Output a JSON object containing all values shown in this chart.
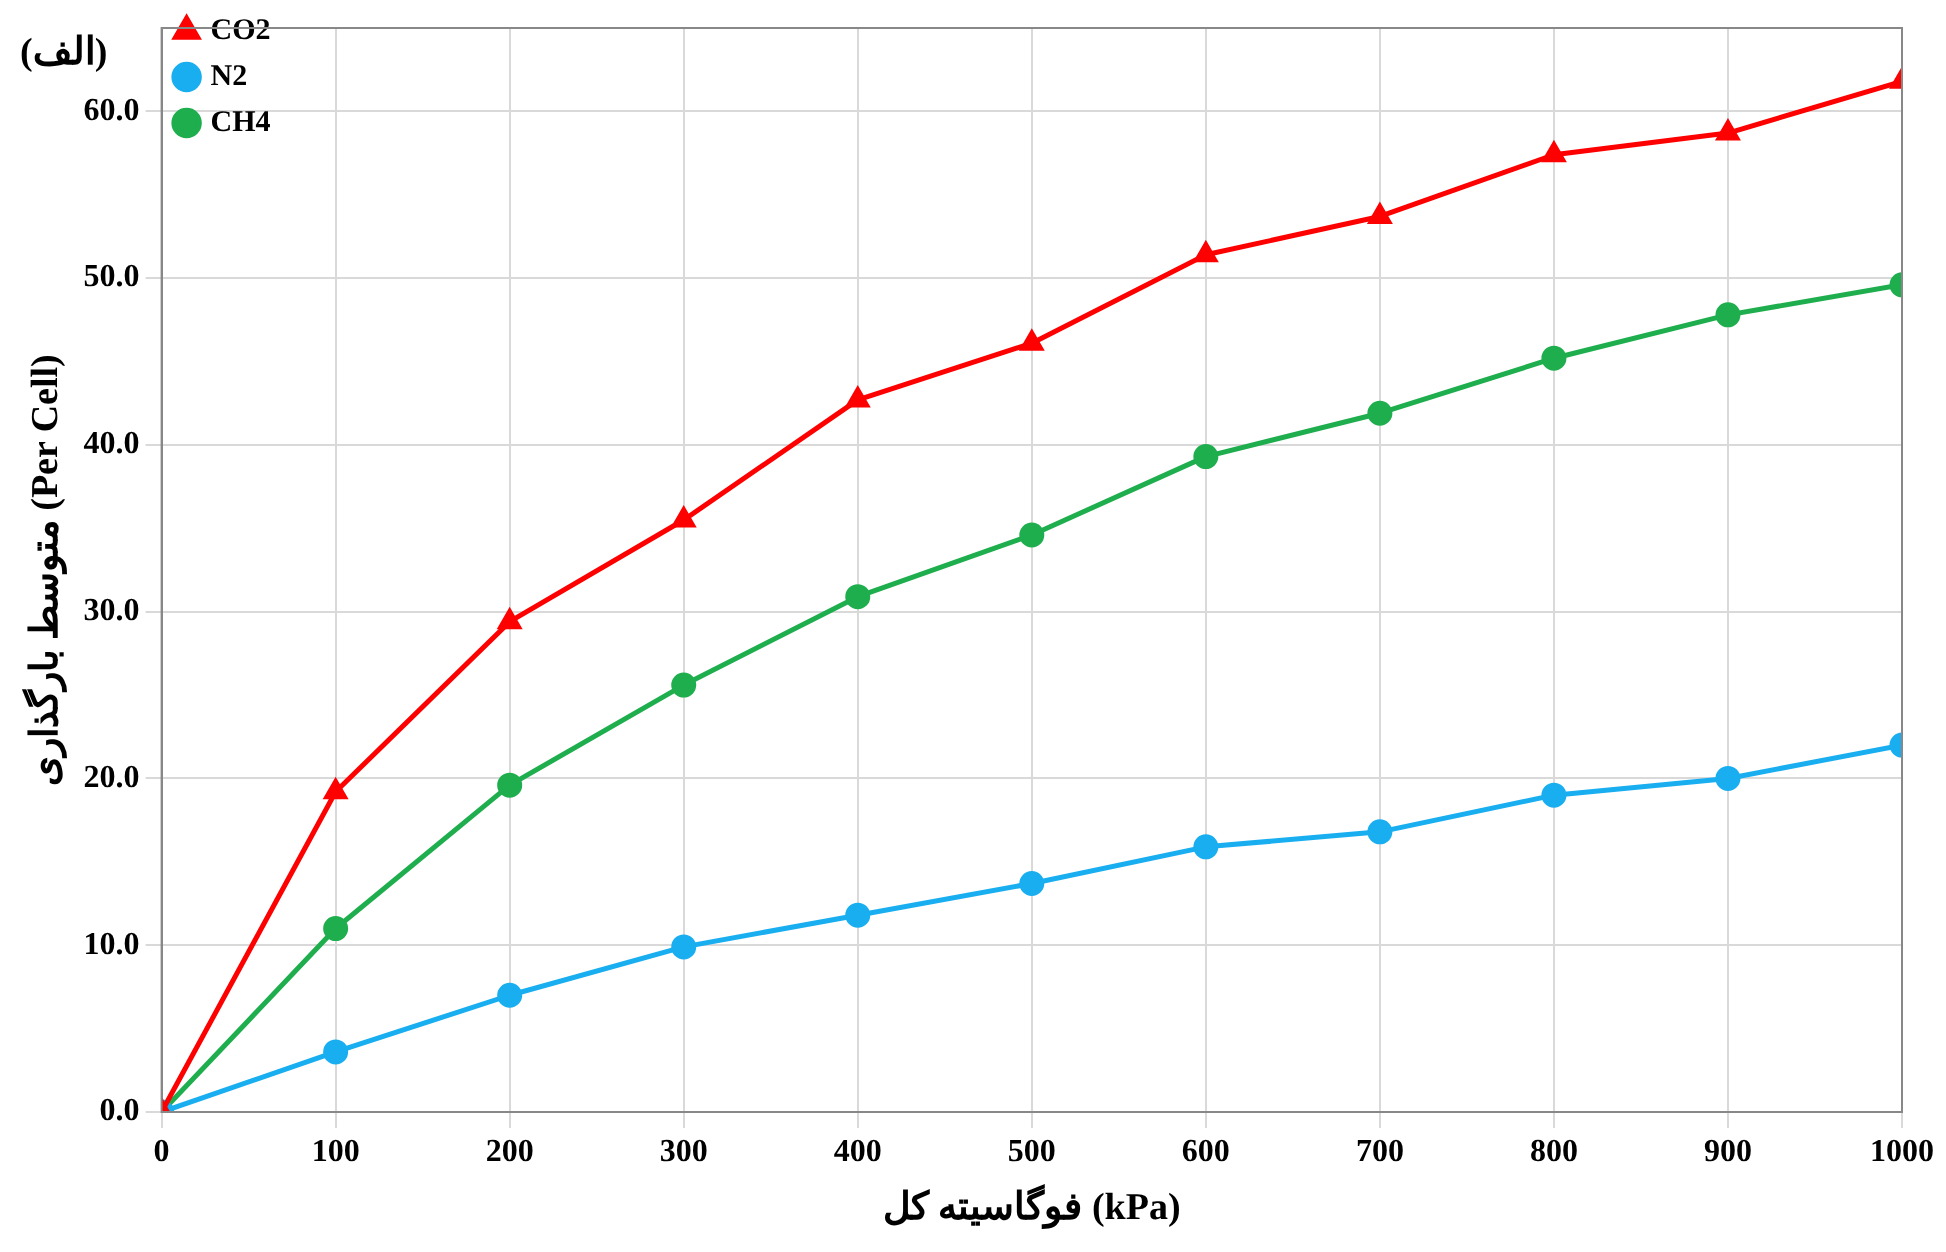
{
  "chart_data": {
    "type": "line",
    "xlabel": "فوگاسیته کل (kPa)",
    "ylabel": "متوسط بارگذاری (Per Cell)",
    "annotations": [
      "(الف)"
    ],
    "x": [
      0,
      100,
      200,
      300,
      400,
      500,
      600,
      700,
      800,
      900,
      1000
    ],
    "series": [
      {
        "name": "CO2",
        "color": "#ff0000",
        "marker": "triangle",
        "values": [
          0,
          19.2,
          29.4,
          35.5,
          42.7,
          46.1,
          51.4,
          53.7,
          57.4,
          58.7,
          61.8
        ]
      },
      {
        "name": "N2",
        "color": "#19aef0",
        "marker": "circle",
        "values": [
          0,
          3.6,
          7.0,
          9.9,
          11.8,
          13.7,
          15.9,
          16.8,
          19.0,
          20.0,
          22.0
        ]
      },
      {
        "name": "CH4",
        "color": "#1fae4e",
        "marker": "circle",
        "values": [
          0,
          11.0,
          19.6,
          25.6,
          30.9,
          34.6,
          39.3,
          41.9,
          45.2,
          47.8,
          49.6
        ]
      }
    ],
    "xlim": [
      0,
      1000
    ],
    "xticks": [
      0,
      100,
      200,
      300,
      400,
      500,
      600,
      700,
      800,
      900,
      1000
    ],
    "ylim": [
      0,
      65
    ],
    "yticks": [
      {
        "value": 0,
        "label": "0.0"
      },
      {
        "value": 10,
        "label": "10.0"
      },
      {
        "value": 20,
        "label": "20.0"
      },
      {
        "value": 30,
        "label": "30.0"
      },
      {
        "value": 40,
        "label": "40.0"
      },
      {
        "value": 50,
        "label": "50.0"
      },
      {
        "value": 60,
        "label": "60.0"
      }
    ],
    "grid": true,
    "legend": "top left",
    "line_style": "solid"
  }
}
